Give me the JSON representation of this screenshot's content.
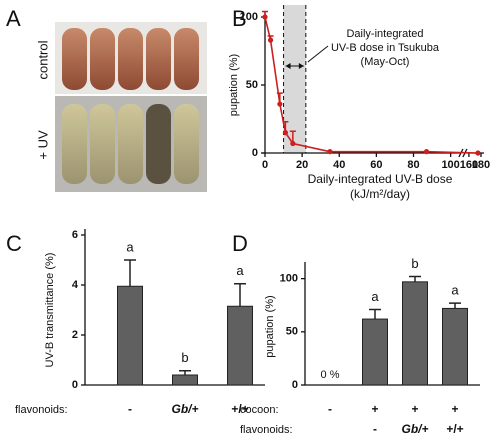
{
  "photo": {
    "panel": "A",
    "labels": [
      "control",
      "+ UV"
    ]
  },
  "chart_data": [
    {
      "type": "line",
      "panel": "B",
      "ylabel": "pupation (%)",
      "xlabel": "Daily-integrated UV-B dose",
      "xlabel_units": "(kJ/m²/day)",
      "annotation": [
        "Daily-integrated",
        "UV-B dose in Tsukuba",
        "(May-Oct)"
      ],
      "shaded_range": [
        10,
        22
      ],
      "x_break": [
        105,
        155
      ],
      "xlim": [
        0,
        185
      ],
      "ylim": [
        0,
        100
      ],
      "xticks": [
        0,
        20,
        40,
        60,
        80,
        100,
        160,
        180
      ],
      "yticks": [
        0,
        50,
        100
      ],
      "color": "#cc1f1f",
      "series": [
        {
          "x": [
            0,
            3,
            8,
            11,
            15,
            35,
            87,
            175
          ],
          "values": [
            100,
            83,
            36,
            15,
            7,
            1,
            1,
            0
          ],
          "errors": [
            4,
            3,
            8,
            8,
            9,
            0,
            0,
            0
          ]
        }
      ]
    },
    {
      "type": "bar",
      "panel": "C",
      "ylabel": "UV-B transmittance (%)",
      "ylim": [
        0,
        6
      ],
      "yticks": [
        0,
        2,
        4,
        6
      ],
      "color": "#606060",
      "category_rows": [
        {
          "label": "flavonoids:",
          "values": [
            "-",
            "Gb/+",
            "+/+"
          ]
        }
      ],
      "values": [
        3.95,
        0.4,
        3.15
      ],
      "errors": [
        1.05,
        0.17,
        0.9
      ],
      "letters": [
        "a",
        "b",
        "a"
      ]
    },
    {
      "type": "bar",
      "panel": "D",
      "ylabel": "pupation (%)",
      "ylim": [
        0,
        110
      ],
      "yticks": [
        0,
        50,
        100
      ],
      "color": "#606060",
      "category_rows": [
        {
          "label": "cocoon:",
          "values": [
            "-",
            "+",
            "+",
            "+"
          ]
        },
        {
          "label": "flavonoids:",
          "values": [
            null,
            "-",
            "Gb/+",
            "+/+"
          ]
        }
      ],
      "values": [
        0,
        62,
        97,
        72
      ],
      "value_labels": [
        "0 %",
        null,
        null,
        null
      ],
      "errors": [
        0,
        9,
        5,
        5
      ],
      "letters": [
        null,
        "a",
        "b",
        "a"
      ]
    }
  ]
}
